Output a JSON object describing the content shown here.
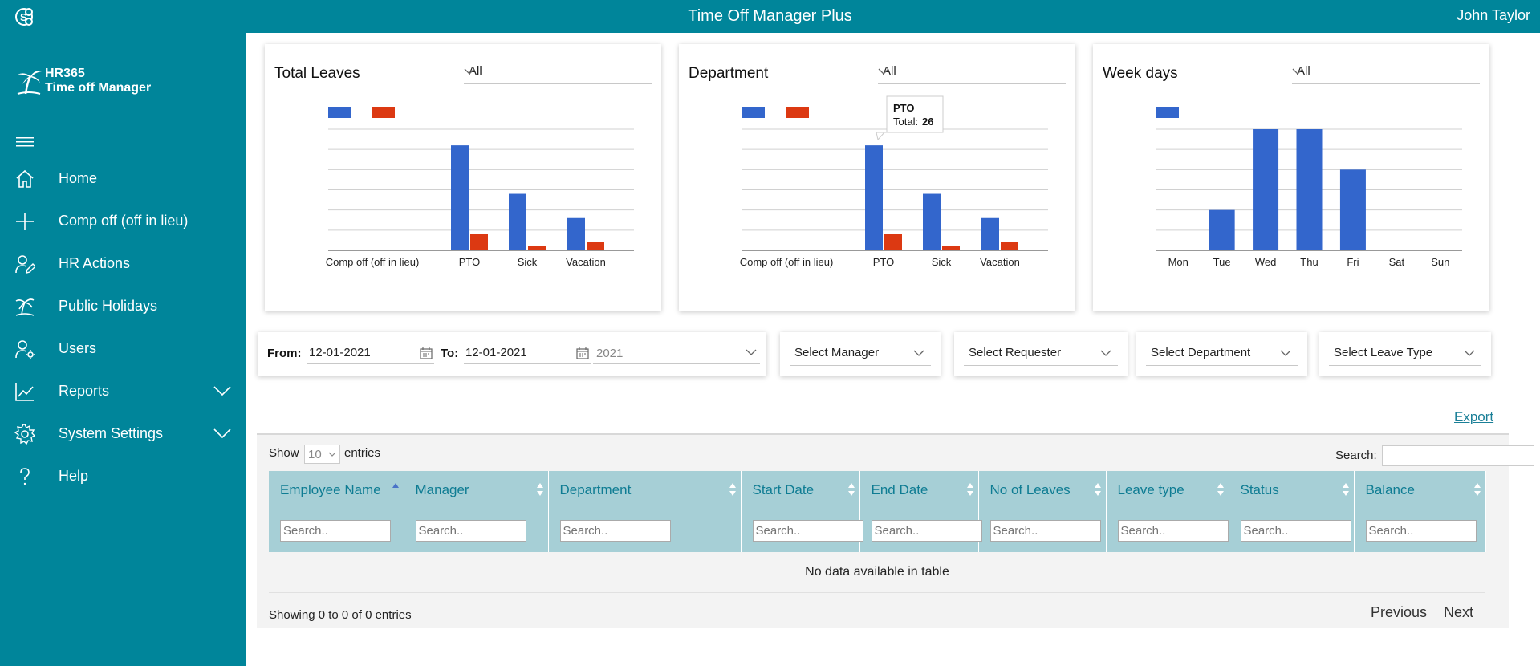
{
  "app": {
    "title": "Time Off Manager Plus",
    "user": "John Taylor"
  },
  "brand": {
    "line1": "HR365",
    "line2": "Time off Manager"
  },
  "sidebar": {
    "items": [
      {
        "label": "Home",
        "icon": "home-icon"
      },
      {
        "label": "Comp off (off in lieu)",
        "icon": "plus-icon"
      },
      {
        "label": "HR Actions",
        "icon": "user-edit-icon"
      },
      {
        "label": "Public Holidays",
        "icon": "palm-tree-icon"
      },
      {
        "label": "Users",
        "icon": "users-gear-icon"
      },
      {
        "label": "Reports",
        "icon": "line-chart-icon",
        "expandable": true
      },
      {
        "label": "System Settings",
        "icon": "gear-icon",
        "expandable": true
      },
      {
        "label": "Help",
        "icon": "question-icon"
      }
    ]
  },
  "colors": {
    "primary": "#00859a",
    "series_blue": "#3366cc",
    "series_red": "#dc3912",
    "header_teal": "#a6cfd6"
  },
  "charts": {
    "total_leaves": {
      "title": "Total Leaves",
      "filter": "All"
    },
    "department": {
      "title": "Department",
      "filter": "All",
      "tooltip": {
        "label": "PTO",
        "total_label": "Total:",
        "total_value": "26"
      }
    },
    "week_days": {
      "title": "Week days",
      "filter": "All"
    }
  },
  "chart_data": [
    {
      "type": "bar",
      "title": "Total Leaves",
      "categories": [
        "Comp off (off in lieu)",
        "PTO",
        "Sick",
        "Vacation"
      ],
      "series": [
        {
          "values": [
            0,
            26,
            14,
            8
          ]
        },
        {
          "values": [
            0,
            4,
            1,
            2
          ]
        }
      ],
      "ylim": [
        0,
        30
      ],
      "grid": true,
      "legend": "top-left"
    },
    {
      "type": "bar",
      "title": "Department",
      "categories": [
        "Comp off (off in lieu)",
        "PTO",
        "Sick",
        "Vacation"
      ],
      "series": [
        {
          "values": [
            0,
            26,
            14,
            8
          ]
        },
        {
          "values": [
            0,
            4,
            1,
            2
          ]
        }
      ],
      "ylim": [
        0,
        30
      ],
      "grid": true,
      "legend": "top-left"
    },
    {
      "type": "bar",
      "title": "Week days",
      "categories": [
        "Mon",
        "Tue",
        "Wed",
        "Thu",
        "Fri",
        "Sat",
        "Sun"
      ],
      "series": [
        {
          "values": [
            0,
            2,
            6,
            6,
            4,
            0,
            0
          ]
        }
      ],
      "ylim": [
        0,
        6
      ],
      "grid": true,
      "legend": "top-left"
    }
  ],
  "filters": {
    "from_label": "From:",
    "from_value": "12-01-2021",
    "to_label": "To:",
    "to_value": "12-01-2021",
    "year_value": "2021",
    "manager": "Select Manager",
    "requester": "Select Requester",
    "department": "Select Department",
    "leave_type": "Select Leave Type"
  },
  "export_label": "Export",
  "table": {
    "show_label": "Show",
    "entries_value": "10",
    "entries_label": "entries",
    "search_label": "Search:",
    "columns": [
      "Employee Name",
      "Manager",
      "Department",
      "Start Date",
      "End Date",
      "No of Leaves",
      "Leave type",
      "Status",
      "Balance"
    ],
    "filter_placeholder": "Search..",
    "empty_message": "No data available in table",
    "showing": "Showing 0 to 0 of 0 entries",
    "previous": "Previous",
    "next": "Next"
  }
}
